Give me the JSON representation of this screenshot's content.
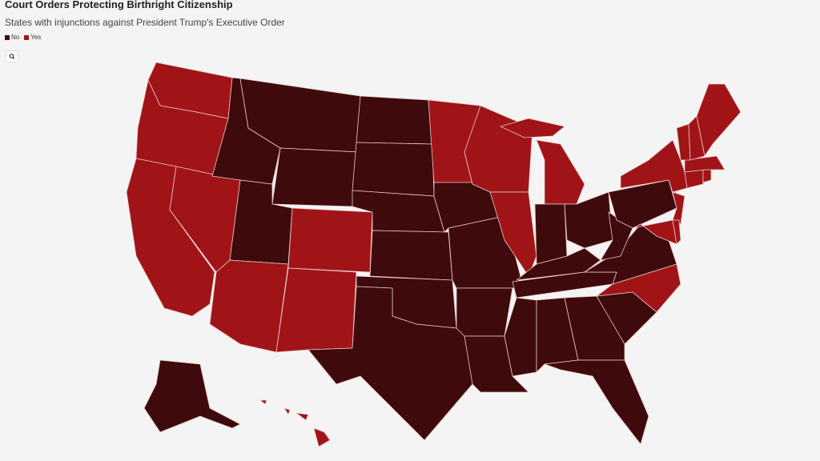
{
  "header": {
    "title": "Court Orders Protecting Birthright Citizenship",
    "subtitle": "States with injunctions against President Trump's Executive Order"
  },
  "legend": [
    {
      "label": "No",
      "color": "#3f0a0b"
    },
    {
      "label": "Yes",
      "color": "#a01418"
    }
  ]
}
